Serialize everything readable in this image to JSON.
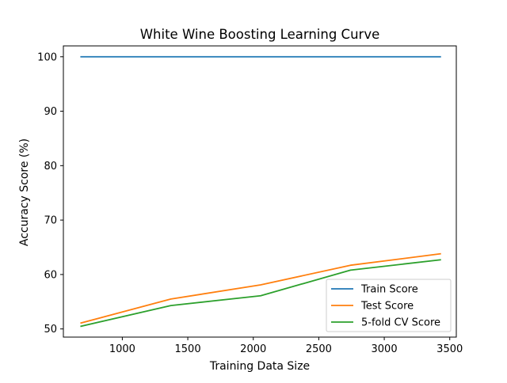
{
  "chart_data": {
    "type": "line",
    "title": "White Wine Boosting Learning Curve",
    "xlabel": "Training Data Size",
    "ylabel": "Accuracy Score (%)",
    "xlim": [
      550,
      3550
    ],
    "ylim": [
      48.5,
      102
    ],
    "xticks": [
      1000,
      1500,
      2000,
      2500,
      3000,
      3500
    ],
    "yticks": [
      50,
      60,
      70,
      80,
      90,
      100
    ],
    "grid": false,
    "legend_position": "lower-right",
    "x": [
      685,
      1371,
      2056,
      2742,
      3428
    ],
    "series": [
      {
        "name": "Train Score",
        "color": "#1f77b4",
        "values": [
          100,
          100,
          100,
          100,
          100
        ]
      },
      {
        "name": "Test Score",
        "color": "#ff7f0e",
        "values": [
          51.1,
          55.5,
          58.1,
          61.7,
          63.8
        ]
      },
      {
        "name": "5-fold CV Score",
        "color": "#2ca02c",
        "values": [
          50.5,
          54.3,
          56.1,
          60.8,
          62.7
        ]
      }
    ]
  }
}
